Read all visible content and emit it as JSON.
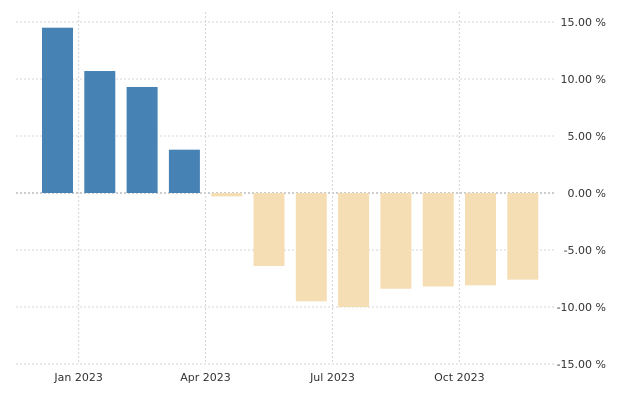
{
  "chart_data": {
    "type": "bar",
    "title": "",
    "xlabel": "",
    "ylabel": "",
    "ylim": [
      -15,
      15
    ],
    "y_ticks": [
      15,
      10,
      5,
      0,
      -5,
      -10,
      -15
    ],
    "y_tick_labels": [
      "15.00 %",
      "10.00 %",
      "5.00 %",
      "0.00 %",
      "-5.00 %",
      "-10.00 %",
      "-15.00 %"
    ],
    "x_tick_labels": [
      {
        "month": "2023-01",
        "label": "Jan 2023"
      },
      {
        "month": "2023-04",
        "label": "Apr 2023"
      },
      {
        "month": "2023-07",
        "label": "Jul 2023"
      },
      {
        "month": "2023-10",
        "label": "Oct 2023"
      }
    ],
    "categories": [
      "2022-12",
      "2023-01",
      "2023-02",
      "2023-03",
      "2023-04",
      "2023-05",
      "2023-06",
      "2023-07",
      "2023-08",
      "2023-09",
      "2023-10",
      "2023-11"
    ],
    "values": [
      14.5,
      10.7,
      9.3,
      3.8,
      -0.3,
      -6.4,
      -9.5,
      -10.0,
      -8.4,
      -8.2,
      -8.1,
      -7.6
    ],
    "positive_color": "#4682b4",
    "negative_color": "#f5deb3",
    "grid": true,
    "legend": false
  }
}
